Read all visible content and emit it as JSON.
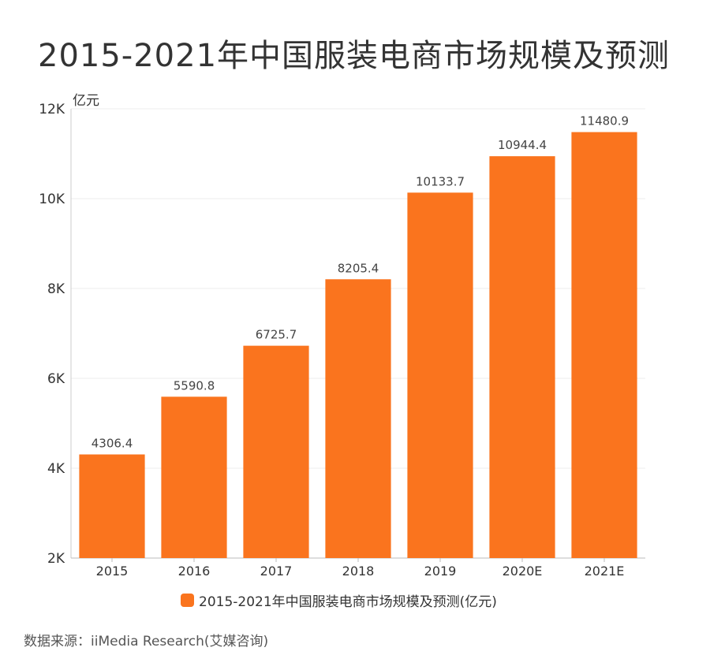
{
  "chart_data": {
    "type": "bar",
    "title": "2015-2021年中国服装电商市场规模及预测",
    "ylabel": "亿元",
    "xlabel": "",
    "categories": [
      "2015",
      "2016",
      "2017",
      "2018",
      "2019",
      "2020E",
      "2021E"
    ],
    "series": [
      {
        "name": "2015-2021年中国服装电商市场规模及预测(亿元)",
        "values": [
          4306.4,
          5590.8,
          6725.7,
          8205.4,
          10133.7,
          10944.4,
          11480.9
        ],
        "value_labels": [
          "4306.4",
          "5590.8",
          "6725.7",
          "8205.4",
          "10133.7",
          "10944.4",
          "11480.9"
        ]
      }
    ],
    "ylim": [
      2000,
      12000
    ],
    "yticks": [
      2000,
      4000,
      6000,
      8000,
      10000,
      12000
    ],
    "ytick_labels": [
      "2K",
      "4K",
      "6K",
      "8K",
      "10K",
      "12K"
    ],
    "grid": true,
    "legend_position": "bottom-center",
    "bar_color": "#FA741E"
  },
  "source": "数据来源：iiMedia Research(艾媒咨询)"
}
